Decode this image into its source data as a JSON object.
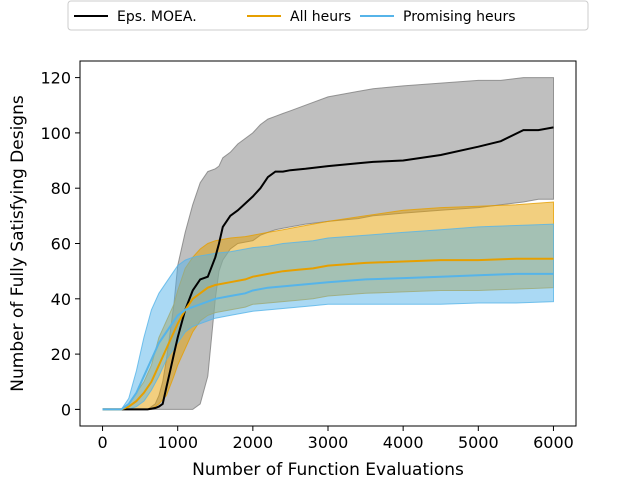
{
  "chart_data": {
    "type": "line",
    "xlabel": "Number of Function Evaluations",
    "ylabel": "Number of Fully Satisfying Designs",
    "xlim": [
      -300,
      6300
    ],
    "ylim": [
      -6,
      126
    ],
    "xticks": [
      0,
      1000,
      2000,
      3000,
      4000,
      5000,
      6000
    ],
    "yticks": [
      0,
      20,
      40,
      60,
      80,
      100,
      120
    ],
    "grid": false,
    "legend_position": "top-center",
    "series": [
      {
        "name": "Eps. MOEA.",
        "color": "#000000",
        "band_color": "#808080",
        "x": [
          0,
          300,
          500,
          600,
          700,
          750,
          800,
          850,
          900,
          950,
          1000,
          1100,
          1200,
          1300,
          1400,
          1500,
          1550,
          1600,
          1700,
          1800,
          2000,
          2100,
          2200,
          2300,
          2400,
          2500,
          2700,
          3000,
          3400,
          3600,
          4000,
          4500,
          5000,
          5300,
          5600,
          5800,
          6000
        ],
        "mean": [
          0,
          0,
          0,
          0,
          0.5,
          1,
          2,
          8,
          14,
          20,
          26,
          36,
          43,
          47,
          48,
          55,
          60,
          66,
          70,
          72,
          77,
          80,
          84,
          86,
          86,
          86.5,
          87,
          88,
          89,
          89.5,
          90,
          92,
          95,
          97,
          101,
          101,
          102
        ],
        "lower": [
          0,
          0,
          0,
          0,
          0,
          0,
          0,
          0,
          0,
          0,
          0,
          0,
          0,
          2,
          12,
          40,
          50,
          54,
          58,
          60,
          61,
          63,
          64,
          65,
          65.5,
          66,
          67,
          68,
          69,
          70,
          71,
          72,
          73,
          74,
          75,
          76,
          76
        ],
        "upper": [
          0,
          0,
          0,
          0,
          2,
          5,
          10,
          18,
          28,
          38,
          52,
          64,
          74,
          82,
          86,
          87,
          88,
          91,
          93,
          96,
          100,
          103,
          105,
          106,
          107,
          108,
          110,
          113,
          115,
          116,
          117,
          118,
          119,
          119,
          120,
          120,
          120
        ]
      },
      {
        "name": "All heurs",
        "color": "#e69f00",
        "band_color": "#e69f00",
        "x": [
          0,
          250,
          350,
          450,
          550,
          650,
          750,
          850,
          950,
          1000,
          1100,
          1200,
          1300,
          1400,
          1500,
          1700,
          1900,
          2000,
          2200,
          2400,
          2600,
          2800,
          3000,
          3500,
          4000,
          4500,
          5000,
          5500,
          6000
        ],
        "mean": [
          0,
          0,
          1,
          3,
          6,
          10,
          16,
          22,
          28,
          31,
          36,
          40,
          42,
          44,
          45,
          46,
          47,
          48,
          49,
          50,
          50.5,
          51,
          52,
          53,
          53.5,
          54,
          54,
          54.5,
          54.5
        ],
        "lower": [
          0,
          0,
          0,
          0,
          0,
          0,
          2,
          5,
          12,
          16,
          22,
          28,
          32,
          34,
          35,
          36,
          37,
          38,
          38.5,
          39,
          39.5,
          40,
          41,
          42,
          42.5,
          43,
          43,
          43.5,
          44
        ],
        "upper": [
          0,
          0,
          2,
          6,
          10,
          16,
          26,
          32,
          38,
          43,
          51,
          55,
          58,
          60,
          61,
          62,
          62.5,
          63,
          64,
          65,
          66,
          67,
          68,
          70,
          72,
          73,
          73.5,
          74,
          75
        ]
      },
      {
        "name": "Promising heurs",
        "color": "#56b4e9",
        "band_color": "#56b4e9",
        "x": [
          0,
          250,
          350,
          450,
          550,
          650,
          750,
          850,
          950,
          1000,
          1100,
          1200,
          1300,
          1400,
          1500,
          1700,
          1900,
          2000,
          2200,
          2400,
          2600,
          2800,
          3000,
          3500,
          4000,
          4500,
          5000,
          5500,
          6000
        ],
        "mean": [
          0,
          0,
          2,
          6,
          12,
          18,
          24,
          28,
          32,
          34,
          36,
          37,
          38,
          39,
          40,
          41,
          42,
          43,
          44,
          44.5,
          45,
          45.5,
          46,
          47,
          47.5,
          48,
          48.5,
          49,
          49
        ],
        "lower": [
          0,
          0,
          0,
          1,
          3,
          7,
          12,
          18,
          22,
          24,
          28,
          30,
          31,
          32,
          33,
          34,
          35,
          35.5,
          36,
          36.5,
          37,
          37.5,
          38,
          38,
          38,
          38,
          38.5,
          38.5,
          39
        ],
        "upper": [
          0,
          0,
          4,
          14,
          26,
          36,
          42,
          46,
          50,
          52,
          54,
          55,
          55.5,
          56,
          56.5,
          57,
          58,
          58.5,
          59,
          60,
          60.5,
          61,
          62,
          63,
          64,
          65,
          66,
          66.5,
          67
        ]
      }
    ]
  }
}
